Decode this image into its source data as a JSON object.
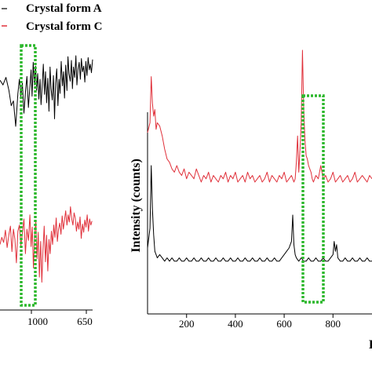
{
  "legend": {
    "items": [
      {
        "label": "Crystal form A",
        "color": "#000000"
      },
      {
        "label": "Crystal form C",
        "color": "#e0303a"
      }
    ]
  },
  "highlight_color": "#2eb82e",
  "chart_data": [
    {
      "type": "line",
      "title": "",
      "xlabel": "",
      "ylabel": "",
      "x_ticks": [
        "1000",
        "650"
      ],
      "xlim": [
        1270,
        650
      ],
      "axis_reversed": true,
      "highlight_range": [
        1062,
        968
      ],
      "series": [
        {
          "name": "Crystal form A",
          "color": "#000000",
          "x": [
            1270,
            1250,
            1230,
            1210,
            1195,
            1180,
            1165,
            1150,
            1140,
            1130,
            1120,
            1110,
            1100,
            1090,
            1080,
            1070,
            1062,
            1055,
            1048,
            1040,
            1032,
            1025,
            1018,
            1010,
            1002,
            995,
            988,
            980,
            972,
            965,
            958,
            950,
            942,
            935,
            928,
            920,
            912,
            905,
            898,
            890,
            882,
            875,
            868,
            860,
            852,
            845,
            838,
            830,
            822,
            815,
            808,
            800,
            792,
            785,
            778,
            770,
            762,
            755,
            748,
            740,
            732,
            725,
            718,
            710,
            702,
            695,
            688,
            680,
            672,
            665,
            658,
            650
          ],
          "y": [
            0.69,
            0.64,
            0.72,
            0.58,
            0.42,
            0.47,
            0.2,
            0.55,
            0.7,
            0.52,
            0.66,
            0.34,
            0.56,
            0.73,
            0.4,
            0.62,
            0.8,
            0.52,
            0.88,
            0.64,
            0.84,
            0.58,
            0.76,
            0.49,
            0.7,
            0.43,
            0.62,
            0.86,
            0.54,
            0.78,
            0.45,
            0.71,
            0.36,
            0.83,
            0.6,
            0.48,
            0.74,
            0.28,
            0.66,
            0.81,
            0.42,
            0.7,
            0.55,
            0.89,
            0.63,
            0.78,
            0.5,
            0.85,
            0.58,
            0.94,
            0.76,
            0.68,
            0.9,
            0.6,
            0.83,
            0.72,
            0.95,
            0.64,
            0.8,
            0.88,
            0.7,
            0.92,
            0.78,
            0.84,
            0.67,
            0.89,
            0.74,
            0.93,
            0.8,
            0.86,
            0.77,
            0.91
          ]
        },
        {
          "name": "Crystal form C",
          "color": "#e0303a",
          "x": [
            1270,
            1258,
            1246,
            1234,
            1222,
            1210,
            1200,
            1190,
            1180,
            1170,
            1160,
            1150,
            1140,
            1130,
            1120,
            1110,
            1100,
            1090,
            1080,
            1070,
            1062,
            1054,
            1046,
            1038,
            1030,
            1022,
            1014,
            1006,
            998,
            990,
            982,
            974,
            966,
            958,
            950,
            942,
            934,
            926,
            918,
            910,
            902,
            894,
            886,
            878,
            870,
            862,
            854,
            846,
            838,
            830,
            822,
            814,
            806,
            798,
            790,
            782,
            774,
            766,
            758,
            750,
            742,
            734,
            726,
            718,
            710,
            702,
            694,
            686,
            678,
            670,
            662,
            654
          ],
          "y": [
            0.45,
            0.52,
            0.47,
            0.59,
            0.42,
            0.55,
            0.63,
            0.38,
            0.6,
            0.5,
            0.27,
            0.58,
            0.64,
            0.44,
            0.56,
            0.7,
            0.36,
            0.6,
            0.49,
            0.74,
            0.43,
            0.62,
            0.22,
            0.55,
            0.68,
            0.31,
            0.57,
            0.13,
            0.48,
            0.08,
            0.4,
            0.63,
            0.28,
            0.54,
            0.19,
            0.5,
            0.36,
            0.58,
            0.45,
            0.64,
            0.52,
            0.71,
            0.48,
            0.6,
            0.66,
            0.55,
            0.73,
            0.6,
            0.69,
            0.78,
            0.64,
            0.74,
            0.67,
            0.82,
            0.7,
            0.64,
            0.76,
            0.71,
            0.58,
            0.67,
            0.6,
            0.72,
            0.51,
            0.65,
            0.57,
            0.69,
            0.62,
            0.74,
            0.58,
            0.7,
            0.64,
            0.68
          ]
        }
      ]
    },
    {
      "type": "line",
      "title": "",
      "xlabel": "",
      "ylabel": "Intensity (counts)",
      "x_ticks": [
        "200",
        "400",
        "600",
        "800"
      ],
      "xlim": [
        40,
        960
      ],
      "highlight_range": [
        655,
        730
      ],
      "series": [
        {
          "name": "Crystal form C",
          "color": "#e0303a",
          "x": [
            40,
            50,
            55,
            60,
            65,
            70,
            75,
            80,
            90,
            100,
            110,
            120,
            130,
            140,
            150,
            160,
            170,
            180,
            190,
            200,
            210,
            220,
            230,
            240,
            250,
            260,
            270,
            280,
            290,
            300,
            310,
            320,
            330,
            340,
            350,
            360,
            370,
            380,
            390,
            400,
            410,
            420,
            430,
            440,
            450,
            460,
            470,
            480,
            490,
            500,
            510,
            520,
            530,
            540,
            550,
            560,
            570,
            580,
            590,
            600,
            610,
            620,
            630,
            640,
            645,
            650,
            655,
            660,
            665,
            670,
            675,
            680,
            685,
            690,
            695,
            700,
            705,
            710,
            715,
            720,
            730,
            740,
            750,
            760,
            770,
            780,
            790,
            800,
            810,
            820,
            830,
            840,
            850,
            860,
            870,
            880,
            890,
            900,
            910,
            920,
            930,
            940,
            950,
            960
          ],
          "y": [
            0.55,
            0.58,
            0.72,
            0.64,
            0.6,
            0.62,
            0.56,
            0.58,
            0.57,
            0.54,
            0.5,
            0.47,
            0.46,
            0.44,
            0.43,
            0.45,
            0.43,
            0.42,
            0.44,
            0.41,
            0.43,
            0.42,
            0.41,
            0.44,
            0.42,
            0.4,
            0.42,
            0.41,
            0.43,
            0.4,
            0.42,
            0.41,
            0.4,
            0.42,
            0.41,
            0.43,
            0.4,
            0.42,
            0.41,
            0.43,
            0.4,
            0.41,
            0.42,
            0.4,
            0.43,
            0.41,
            0.42,
            0.4,
            0.41,
            0.42,
            0.4,
            0.41,
            0.43,
            0.4,
            0.42,
            0.41,
            0.4,
            0.42,
            0.41,
            0.43,
            0.4,
            0.41,
            0.42,
            0.4,
            0.41,
            0.46,
            0.54,
            0.43,
            0.5,
            0.58,
            0.8,
            0.62,
            0.53,
            0.48,
            0.47,
            0.45,
            0.44,
            0.43,
            0.41,
            0.4,
            0.42,
            0.41,
            0.45,
            0.41,
            0.42,
            0.4,
            0.41,
            0.43,
            0.4,
            0.41,
            0.42,
            0.4,
            0.41,
            0.42,
            0.4,
            0.41,
            0.43,
            0.4,
            0.41,
            0.42,
            0.41,
            0.4,
            0.42,
            0.41
          ]
        },
        {
          "name": "Crystal form A",
          "color": "#000000",
          "x": [
            40,
            50,
            55,
            60,
            65,
            70,
            75,
            80,
            90,
            100,
            110,
            120,
            130,
            140,
            150,
            160,
            170,
            180,
            190,
            200,
            210,
            220,
            230,
            240,
            250,
            260,
            270,
            280,
            290,
            300,
            310,
            320,
            330,
            340,
            350,
            360,
            370,
            380,
            390,
            400,
            410,
            420,
            430,
            440,
            450,
            460,
            470,
            480,
            490,
            500,
            510,
            520,
            530,
            540,
            550,
            560,
            570,
            580,
            590,
            600,
            610,
            620,
            630,
            635,
            640,
            645,
            650,
            660,
            670,
            680,
            690,
            700,
            710,
            720,
            730,
            740,
            750,
            760,
            770,
            780,
            790,
            800,
            805,
            810,
            815,
            820,
            830,
            840,
            850,
            860,
            870,
            880,
            890,
            900,
            910,
            920,
            930,
            940,
            950,
            960
          ],
          "y": [
            0.2,
            0.26,
            0.45,
            0.32,
            0.24,
            0.19,
            0.18,
            0.17,
            0.18,
            0.17,
            0.16,
            0.17,
            0.16,
            0.17,
            0.16,
            0.16,
            0.17,
            0.16,
            0.16,
            0.17,
            0.16,
            0.16,
            0.17,
            0.16,
            0.16,
            0.17,
            0.16,
            0.16,
            0.17,
            0.16,
            0.16,
            0.17,
            0.16,
            0.16,
            0.17,
            0.16,
            0.16,
            0.17,
            0.16,
            0.16,
            0.17,
            0.16,
            0.16,
            0.17,
            0.16,
            0.16,
            0.17,
            0.16,
            0.16,
            0.17,
            0.16,
            0.16,
            0.17,
            0.16,
            0.16,
            0.17,
            0.16,
            0.16,
            0.17,
            0.18,
            0.19,
            0.2,
            0.22,
            0.3,
            0.21,
            0.18,
            0.17,
            0.16,
            0.17,
            0.16,
            0.16,
            0.17,
            0.16,
            0.16,
            0.17,
            0.16,
            0.16,
            0.17,
            0.16,
            0.16,
            0.17,
            0.18,
            0.22,
            0.19,
            0.21,
            0.17,
            0.16,
            0.16,
            0.17,
            0.16,
            0.16,
            0.17,
            0.16,
            0.16,
            0.17,
            0.16,
            0.16,
            0.17,
            0.16,
            0.16
          ]
        }
      ]
    }
  ]
}
